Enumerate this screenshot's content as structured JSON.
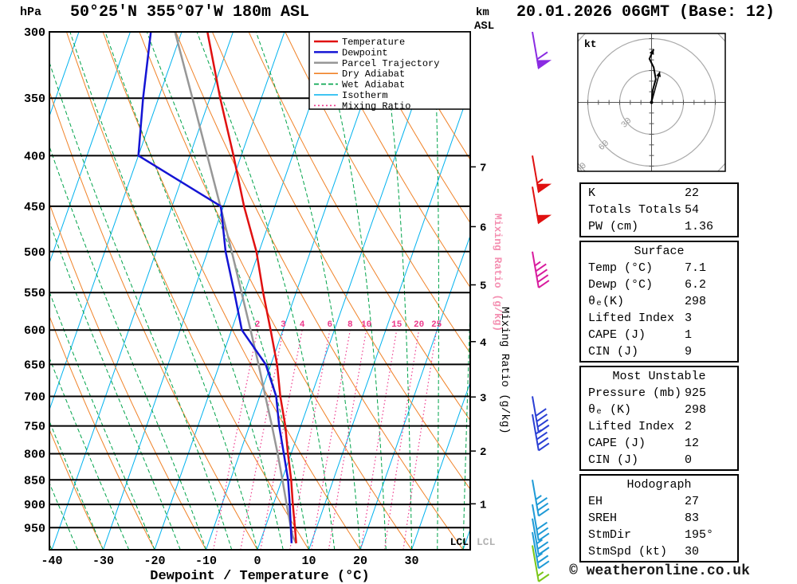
{
  "header": {
    "station_title": "50°25'N 355°07'W 180m ASL",
    "datetime_title": "20.01.2026 06GMT (Base: 12)",
    "pressure_unit": "hPa",
    "altitude_unit_line1": "km",
    "altitude_unit_line2": "ASL",
    "xaxis_label": "Dewpoint / Temperature (°C)",
    "mixing_axis_label": "Mixing Ratio (g/kg)",
    "lcl_label": "LCL",
    "copyright": "© weatheronline.co.uk"
  },
  "legend": [
    {
      "label": "Temperature",
      "color": "#e01010",
      "style": "solid"
    },
    {
      "label": "Dewpoint",
      "color": "#1414d4",
      "style": "solid"
    },
    {
      "label": "Parcel Trajectory",
      "color": "#979797",
      "style": "solid"
    },
    {
      "label": "Dry Adiabat",
      "color": "#f08228",
      "style": "solid"
    },
    {
      "label": "Wet Adiabat",
      "color": "#00a34a",
      "style": "dashed"
    },
    {
      "label": "Isotherm",
      "color": "#00b2ee",
      "style": "solid"
    },
    {
      "label": "Mixing Ratio",
      "color": "#ee3a8c",
      "style": "dotted"
    }
  ],
  "chart_data": {
    "type": "skew-t-log-p",
    "pressure_axis": {
      "unit": "hPa",
      "scale": "log",
      "range": [
        300,
        1000
      ],
      "ticks": [
        300,
        350,
        400,
        450,
        500,
        550,
        600,
        650,
        700,
        750,
        800,
        850,
        900,
        950
      ]
    },
    "temp_axis": {
      "unit": "°C",
      "ticks": [
        -40,
        -30,
        -20,
        -10,
        0,
        10,
        20,
        30
      ]
    },
    "km_ticks": [
      1,
      2,
      3,
      4,
      5,
      6,
      7
    ],
    "mixing_ratio_lines": [
      2,
      3,
      4,
      6,
      8,
      10,
      15,
      20,
      25
    ],
    "sounding": {
      "pressure_hPa": [
        985,
        950,
        900,
        850,
        800,
        750,
        700,
        650,
        600,
        550,
        500,
        450,
        400,
        350,
        300
      ],
      "temperature_C": [
        7.1,
        5.8,
        3.8,
        1.8,
        -0.6,
        -3.0,
        -6.0,
        -8.8,
        -12.4,
        -16.4,
        -20.5,
        -26.0,
        -31.5,
        -38.0,
        -45.0
      ],
      "dewpoint_C": [
        6.2,
        5.0,
        3.2,
        1.2,
        -1.4,
        -4.2,
        -6.8,
        -11.0,
        -18.0,
        -22.0,
        -26.5,
        -30.5,
        -50.0,
        -53.0,
        -56.0
      ]
    },
    "parcel_trajectory": {
      "pressure_hPa": [
        985,
        970,
        950,
        900,
        850,
        800,
        750,
        700,
        650,
        600,
        550,
        500,
        450,
        400,
        350,
        300
      ],
      "temperature_C": [
        7.1,
        6.0,
        5.0,
        2.6,
        0.1,
        -2.6,
        -5.6,
        -8.9,
        -12.4,
        -16.3,
        -20.6,
        -25.3,
        -30.6,
        -36.6,
        -43.4,
        -51.3
      ]
    },
    "wind_barbs": [
      {
        "pressure_hPa": 300,
        "speed_kt": 60,
        "color": "#8a2be2"
      },
      {
        "pressure_hPa": 400,
        "speed_kt": 55,
        "color": "#e01010"
      },
      {
        "pressure_hPa": 430,
        "speed_kt": 50,
        "color": "#e01010"
      },
      {
        "pressure_hPa": 500,
        "speed_kt": 45,
        "color": "#d81b9e"
      },
      {
        "pressure_hPa": 700,
        "speed_kt": 40,
        "color": "#2a3fd4"
      },
      {
        "pressure_hPa": 730,
        "speed_kt": 35,
        "color": "#2a3fd4"
      },
      {
        "pressure_hPa": 850,
        "speed_kt": 35,
        "color": "#1e9ad6"
      },
      {
        "pressure_hPa": 900,
        "speed_kt": 30,
        "color": "#1e9ad6"
      },
      {
        "pressure_hPa": 930,
        "speed_kt": 25,
        "color": "#1e9ad6"
      },
      {
        "pressure_hPa": 960,
        "speed_kt": 25,
        "color": "#1e9ad6"
      },
      {
        "pressure_hPa": 990,
        "speed_kt": 15,
        "color": "#7ac618"
      }
    ],
    "colors": {
      "temperature": "#e01010",
      "dewpoint": "#1414d4",
      "parcel": "#979797",
      "dry_adiabat": "#f08228",
      "wet_adiabat": "#00a34a",
      "isotherm": "#00b2ee",
      "mixing_ratio": "#ee3a8c",
      "grid": "#000000",
      "mixing_axis_pink": "#f48fb1"
    }
  },
  "hodograph": {
    "unit": "kt",
    "rings_kt": [
      30,
      60,
      90
    ],
    "ring_labels": [
      "30",
      "60",
      "90"
    ],
    "trace": [
      [
        0,
        0
      ],
      [
        1,
        11
      ],
      [
        4,
        22
      ],
      [
        2,
        33
      ],
      [
        -2,
        41
      ],
      [
        2,
        50
      ]
    ],
    "storm_motion": {
      "dir_deg": 195,
      "speed_kt": 30
    }
  },
  "tables": [
    {
      "title": null,
      "rows": [
        [
          "K",
          "22"
        ],
        [
          "Totals Totals",
          "54"
        ],
        [
          "PW (cm)",
          "1.36"
        ]
      ]
    },
    {
      "title": "Surface",
      "rows": [
        [
          "Temp (°C)",
          "7.1"
        ],
        [
          "Dewp (°C)",
          "6.2"
        ],
        [
          "θₑ(K)",
          "298"
        ],
        [
          "Lifted Index",
          "3"
        ],
        [
          "CAPE (J)",
          "1"
        ],
        [
          "CIN (J)",
          "9"
        ]
      ]
    },
    {
      "title": "Most Unstable",
      "rows": [
        [
          "Pressure (mb)",
          "925"
        ],
        [
          "θₑ (K)",
          "298"
        ],
        [
          "Lifted Index",
          "2"
        ],
        [
          "CAPE (J)",
          "12"
        ],
        [
          "CIN (J)",
          "0"
        ]
      ]
    },
    {
      "title": "Hodograph",
      "rows": [
        [
          "EH",
          "27"
        ],
        [
          "SREH",
          "83"
        ],
        [
          "StmDir",
          "195°"
        ],
        [
          "StmSpd (kt)",
          "30"
        ]
      ]
    }
  ]
}
